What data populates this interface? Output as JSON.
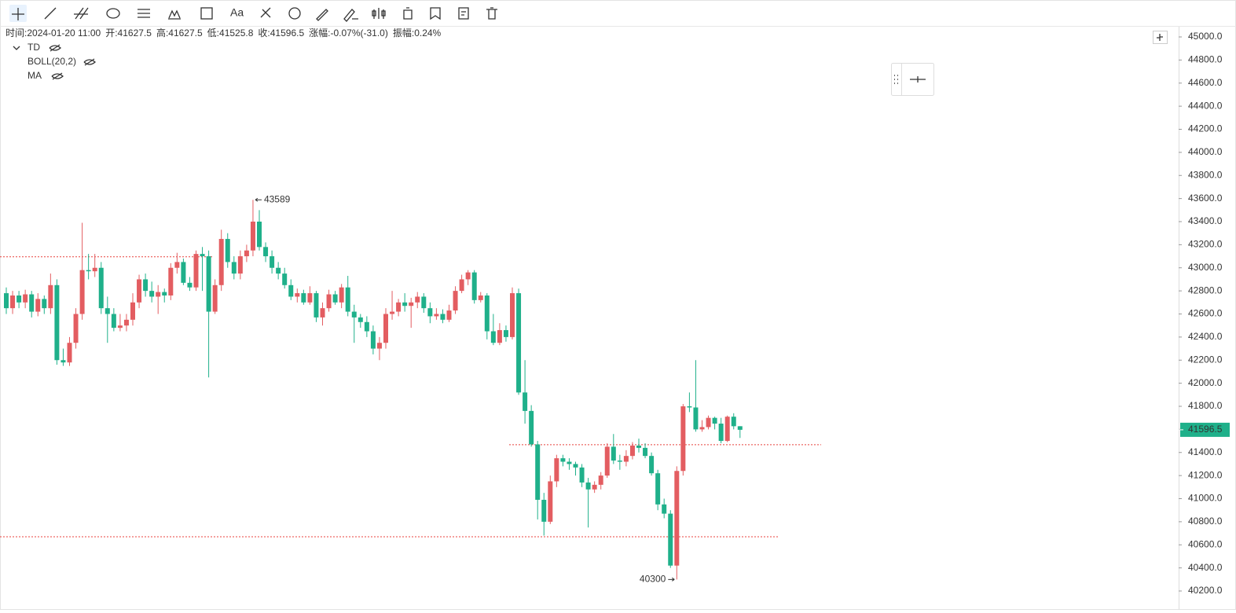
{
  "toolbar": {
    "text_tool": "Aa"
  },
  "info": [
    {
      "label": "时间:",
      "value": "2024-01-20 11:00"
    },
    {
      "label": "开:",
      "value": "41627.5"
    },
    {
      "label": "高:",
      "value": "41627.5"
    },
    {
      "label": "低:",
      "value": "41525.8"
    },
    {
      "label": "收:",
      "value": "41596.5"
    },
    {
      "label": "涨幅:",
      "value": "-0.07%(-31.0)"
    },
    {
      "label": "振幅:",
      "value": "0.24%"
    }
  ],
  "indicators": [
    "TD",
    "BOLL(20,2)",
    "MA"
  ],
  "chart_data": {
    "type": "candlestick",
    "colors": {
      "up": "#e35d61",
      "down": "#1fb08a",
      "lines": "#e8413c"
    },
    "ylim": [
      40200,
      45000
    ],
    "yticks": [
      {
        "value": 40200,
        "label": "40200.0"
      },
      {
        "value": 40400,
        "label": "40400.0"
      },
      {
        "value": 40600,
        "label": "40600.0"
      },
      {
        "value": 40800,
        "label": "40800.0"
      },
      {
        "value": 41000,
        "label": "41000.0"
      },
      {
        "value": 41200,
        "label": "41200.0"
      },
      {
        "value": 41400,
        "label": "41400.0"
      },
      {
        "value": 41600,
        "label": "41600.0"
      },
      {
        "value": 41800,
        "label": "41800.0"
      },
      {
        "value": 42000,
        "label": "42000.0"
      },
      {
        "value": 42200,
        "label": "42200.0"
      },
      {
        "value": 42400,
        "label": "42400.0"
      },
      {
        "value": 42600,
        "label": "42600.0"
      },
      {
        "value": 42800,
        "label": "42800.0"
      },
      {
        "value": 43000,
        "label": "43000.0"
      },
      {
        "value": 43200,
        "label": "43200.0"
      },
      {
        "value": 43400,
        "label": "43400.0"
      },
      {
        "value": 43600,
        "label": "43600.0"
      },
      {
        "value": 43800,
        "label": "43800.0"
      },
      {
        "value": 44000,
        "label": "44000.0"
      },
      {
        "value": 44200,
        "label": "44200.0"
      },
      {
        "value": 44400,
        "label": "44400.0"
      },
      {
        "value": 44600,
        "label": "44600.0"
      },
      {
        "value": 44800,
        "label": "44800.0"
      },
      {
        "value": 45000,
        "label": "45000.0"
      }
    ],
    "hlines": [
      43095,
      41467,
      40670
    ],
    "ohlc": [
      [
        42780,
        42830,
        42600,
        42650
      ],
      [
        42650,
        42800,
        42600,
        42760
      ],
      [
        42760,
        42800,
        42650,
        42700
      ],
      [
        42700,
        42810,
        42650,
        42770
      ],
      [
        42770,
        42800,
        42570,
        42620
      ],
      [
        42620,
        42780,
        42580,
        42730
      ],
      [
        42730,
        42760,
        42600,
        42650
      ],
      [
        42650,
        42950,
        42600,
        42850
      ],
      [
        42850,
        42900,
        42160,
        42200
      ],
      [
        42200,
        42300,
        42150,
        42180
      ],
      [
        42180,
        42400,
        42150,
        42350
      ],
      [
        42350,
        42650,
        42300,
        42600
      ],
      [
        42600,
        43390,
        42550,
        42980
      ],
      [
        42980,
        43120,
        42900,
        42970
      ],
      [
        42970,
        43120,
        42920,
        43000
      ],
      [
        43000,
        43050,
        42600,
        42650
      ],
      [
        42650,
        42750,
        42350,
        42600
      ],
      [
        42600,
        42650,
        42450,
        42480
      ],
      [
        42480,
        42600,
        42450,
        42500
      ],
      [
        42500,
        42600,
        42450,
        42550
      ],
      [
        42550,
        42780,
        42500,
        42700
      ],
      [
        42700,
        42940,
        42650,
        42900
      ],
      [
        42900,
        42950,
        42750,
        42800
      ],
      [
        42800,
        42880,
        42700,
        42750
      ],
      [
        42750,
        42850,
        42600,
        42790
      ],
      [
        42790,
        42820,
        42700,
        42760
      ],
      [
        42760,
        43040,
        42720,
        43000
      ],
      [
        43000,
        43130,
        42950,
        43050
      ],
      [
        43050,
        43080,
        42850,
        42870
      ],
      [
        42870,
        42920,
        42800,
        42830
      ],
      [
        42830,
        43150,
        42800,
        43120
      ],
      [
        43120,
        43180,
        42800,
        43100
      ],
      [
        43100,
        43150,
        42050,
        42620
      ],
      [
        42620,
        42900,
        42600,
        42850
      ],
      [
        42850,
        43330,
        42800,
        43250
      ],
      [
        43250,
        43300,
        43000,
        43050
      ],
      [
        43050,
        43100,
        42900,
        42950
      ],
      [
        42950,
        43150,
        42900,
        43100
      ],
      [
        43100,
        43200,
        43050,
        43150
      ],
      [
        43150,
        43589,
        43100,
        43400
      ],
      [
        43400,
        43500,
        43150,
        43180
      ],
      [
        43180,
        43220,
        43050,
        43100
      ],
      [
        43100,
        43150,
        42950,
        43000
      ],
      [
        43000,
        43050,
        42900,
        42950
      ],
      [
        42950,
        43000,
        42820,
        42850
      ],
      [
        42850,
        42900,
        42720,
        42750
      ],
      [
        42750,
        42820,
        42700,
        42780
      ],
      [
        42780,
        42810,
        42680,
        42700
      ],
      [
        42700,
        42840,
        42680,
        42780
      ],
      [
        42780,
        42800,
        42530,
        42570
      ],
      [
        42570,
        42700,
        42500,
        42650
      ],
      [
        42650,
        42810,
        42620,
        42770
      ],
      [
        42770,
        42800,
        42680,
        42700
      ],
      [
        42700,
        42860,
        42650,
        42830
      ],
      [
        42830,
        42930,
        42580,
        42620
      ],
      [
        42620,
        42680,
        42350,
        42570
      ],
      [
        42570,
        42600,
        42480,
        42530
      ],
      [
        42530,
        42580,
        42400,
        42450
      ],
      [
        42450,
        42500,
        42250,
        42300
      ],
      [
        42300,
        42400,
        42200,
        42350
      ],
      [
        42350,
        42650,
        42300,
        42600
      ],
      [
        42600,
        42800,
        42550,
        42620
      ],
      [
        42620,
        42730,
        42580,
        42700
      ],
      [
        42700,
        42780,
        42620,
        42670
      ],
      [
        42670,
        42740,
        42480,
        42700
      ],
      [
        42700,
        42790,
        42650,
        42750
      ],
      [
        42750,
        42780,
        42610,
        42650
      ],
      [
        42650,
        42700,
        42520,
        42580
      ],
      [
        42580,
        42650,
        42550,
        42600
      ],
      [
        42600,
        42640,
        42520,
        42550
      ],
      [
        42550,
        42680,
        42530,
        42630
      ],
      [
        42630,
        42840,
        42600,
        42800
      ],
      [
        42800,
        42940,
        42780,
        42900
      ],
      [
        42900,
        42980,
        42850,
        42960
      ],
      [
        42960,
        42980,
        42690,
        42720
      ],
      [
        42720,
        42790,
        42700,
        42760
      ],
      [
        42760,
        42780,
        42380,
        42450
      ],
      [
        42450,
        42600,
        42330,
        42350
      ],
      [
        42350,
        42520,
        42330,
        42460
      ],
      [
        42460,
        42500,
        42360,
        42400
      ],
      [
        42400,
        42830,
        42380,
        42780
      ],
      [
        42780,
        42820,
        41900,
        41920
      ],
      [
        41920,
        42200,
        41650,
        41760
      ],
      [
        41760,
        41810,
        41450,
        41470
      ],
      [
        41470,
        41500,
        40820,
        40990
      ],
      [
        40990,
        41050,
        40680,
        40800
      ],
      [
        40800,
        41200,
        40780,
        41150
      ],
      [
        41150,
        41380,
        41100,
        41350
      ],
      [
        41350,
        41380,
        41280,
        41320
      ],
      [
        41320,
        41350,
        41250,
        41300
      ],
      [
        41300,
        41320,
        41200,
        41270
      ],
      [
        41270,
        41300,
        41100,
        41140
      ],
      [
        41140,
        41180,
        40750,
        41080
      ],
      [
        41080,
        41150,
        41050,
        41120
      ],
      [
        41120,
        41230,
        41080,
        41200
      ],
      [
        41200,
        41480,
        41180,
        41450
      ],
      [
        41450,
        41560,
        41300,
        41330
      ],
      [
        41330,
        41380,
        41250,
        41320
      ],
      [
        41320,
        41420,
        41280,
        41370
      ],
      [
        41370,
        41490,
        41340,
        41460
      ],
      [
        41460,
        41520,
        41400,
        41440
      ],
      [
        41440,
        41480,
        41350,
        41370
      ],
      [
        41370,
        41400,
        41200,
        41220
      ],
      [
        41220,
        41250,
        40900,
        40950
      ],
      [
        40950,
        41000,
        40830,
        40870
      ],
      [
        40870,
        40900,
        40400,
        40420
      ],
      [
        40420,
        41280,
        40300,
        41240
      ],
      [
        41240,
        41820,
        41200,
        41800
      ],
      [
        41800,
        41920,
        41750,
        41790
      ],
      [
        41790,
        42200,
        41580,
        41600
      ],
      [
        41600,
        41680,
        41580,
        41620
      ],
      [
        41620,
        41720,
        41600,
        41700
      ],
      [
        41700,
        41710,
        41600,
        41650
      ],
      [
        41650,
        41700,
        41480,
        41500
      ],
      [
        41500,
        41720,
        41490,
        41710
      ],
      [
        41710,
        41740,
        41600,
        41627.5
      ],
      [
        41627.5,
        41627.5,
        41525.8,
        41596.5
      ]
    ],
    "high_mark": 39,
    "low_mark": 106
  }
}
